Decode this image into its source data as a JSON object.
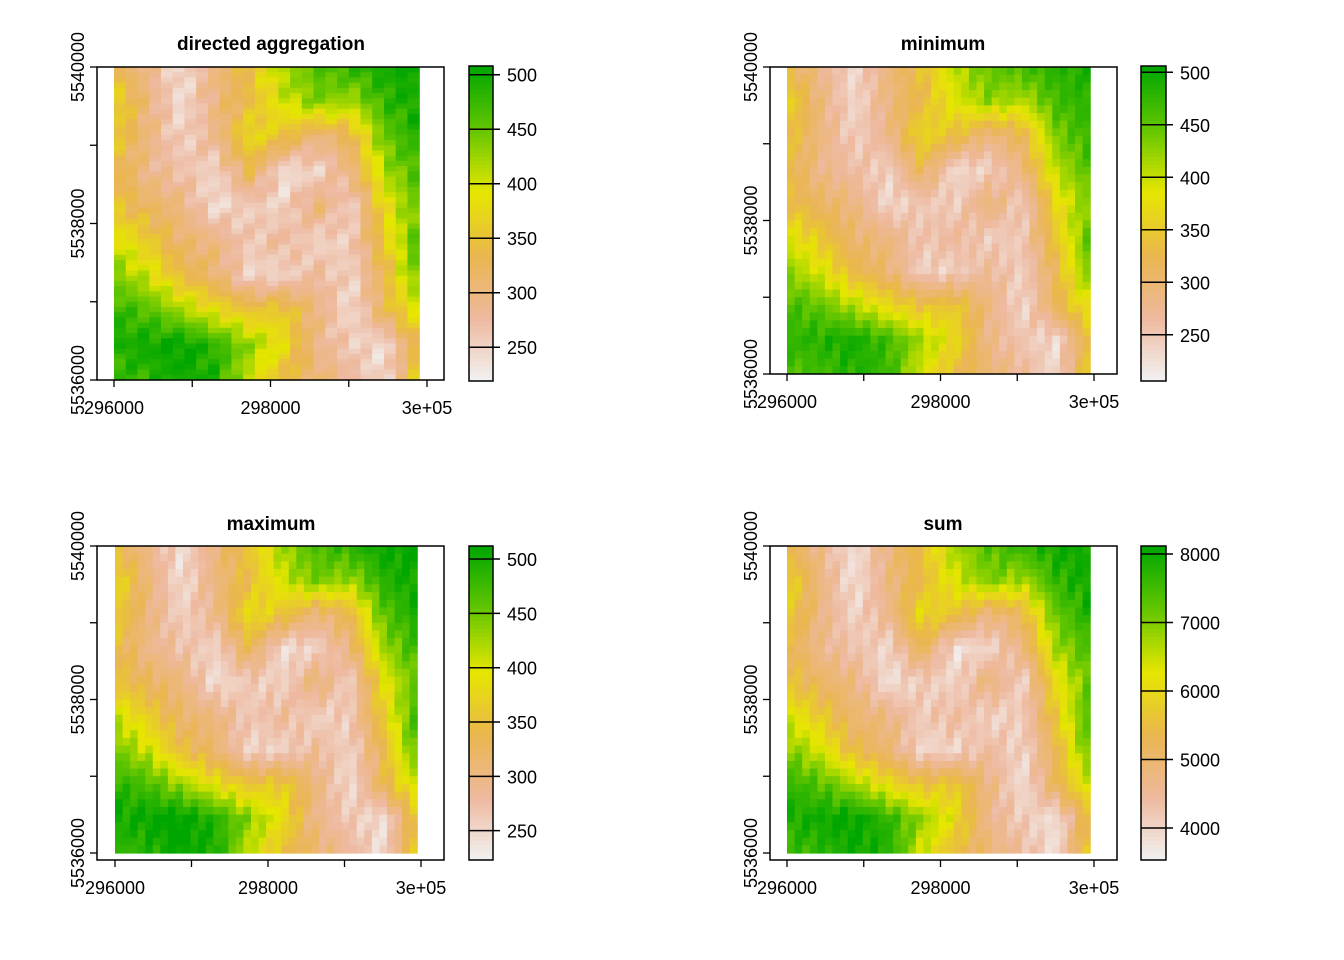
{
  "chart_data": [
    {
      "type": "heatmap",
      "title": "directed aggregation",
      "xlim": [
        296000,
        300000
      ],
      "ylim": [
        5536000,
        5540000
      ],
      "x_ticks": [
        "296000",
        "298000",
        "3e+05"
      ],
      "y_ticks": [
        "5536000",
        "5538000",
        "5540000"
      ],
      "legend_ticks": [
        "500",
        "450",
        "400",
        "350",
        "300",
        "250"
      ],
      "legend_range": [
        219,
        508
      ],
      "value_scale": 1,
      "raster_extent_x": [
        296000,
        299900
      ],
      "raster_cols": 26,
      "raster_rows": 60
    },
    {
      "type": "heatmap",
      "title": "minimum",
      "xlim": [
        296000,
        300000
      ],
      "ylim": [
        5536000,
        5540000
      ],
      "x_ticks": [
        "296000",
        "298000",
        "3e+05"
      ],
      "y_ticks": [
        "5536000",
        "5538000",
        "5540000"
      ],
      "legend_ticks": [
        "500",
        "450",
        "400",
        "350",
        "300",
        "250"
      ],
      "legend_range": [
        206,
        506
      ],
      "value_scale": 0.97,
      "raster_extent_x": [
        296000,
        299950
      ],
      "raster_cols": 40,
      "raster_rows": 40
    },
    {
      "type": "heatmap",
      "title": "maximum",
      "xlim": [
        296000,
        300000
      ],
      "ylim": [
        5536000,
        5540000
      ],
      "x_ticks": [
        "296000",
        "298000",
        "3e+05"
      ],
      "y_ticks": [
        "5536000",
        "5538000",
        "5540000"
      ],
      "legend_ticks": [
        "500",
        "450",
        "400",
        "350",
        "300",
        "250"
      ],
      "legend_range": [
        223,
        512
      ],
      "value_scale": 1.02,
      "raster_extent_x": [
        296000,
        299950
      ],
      "raster_cols": 40,
      "raster_rows": 40
    },
    {
      "type": "heatmap",
      "title": "sum",
      "xlim": [
        296000,
        300000
      ],
      "ylim": [
        5536000,
        5540000
      ],
      "x_ticks": [
        "296000",
        "298000",
        "3e+05"
      ],
      "y_ticks": [
        "5536000",
        "5538000",
        "5540000"
      ],
      "legend_ticks": [
        "8000",
        "7000",
        "6000",
        "5000",
        "4000"
      ],
      "legend_range": [
        3533,
        8117
      ],
      "value_scale": 16,
      "raster_extent_x": [
        296000,
        299950
      ],
      "raster_cols": 40,
      "raster_rows": 40
    }
  ],
  "elevation_grid_approx": [
    [
      330,
      290,
      240,
      300,
      350,
      420,
      460,
      480,
      500,
      500
    ],
    [
      380,
      300,
      240,
      300,
      340,
      400,
      440,
      420,
      480,
      500
    ],
    [
      360,
      300,
      250,
      290,
      380,
      350,
      300,
      330,
      450,
      490
    ],
    [
      340,
      290,
      270,
      250,
      330,
      240,
      250,
      300,
      420,
      470
    ],
    [
      350,
      320,
      300,
      240,
      260,
      250,
      310,
      250,
      380,
      450
    ],
    [
      400,
      360,
      310,
      300,
      260,
      280,
      250,
      260,
      360,
      470
    ],
    [
      440,
      400,
      340,
      310,
      250,
      250,
      280,
      250,
      330,
      460
    ],
    [
      480,
      460,
      420,
      380,
      350,
      360,
      300,
      240,
      330,
      400
    ],
    [
      490,
      500,
      510,
      480,
      430,
      380,
      290,
      260,
      240,
      350
    ],
    [
      470,
      480,
      500,
      490,
      400,
      340,
      310,
      280,
      240,
      380
    ]
  ],
  "palette": [
    "#F2F2F2",
    "#EEB99F",
    "#EAB64E",
    "#E6E600",
    "#63C600",
    "#00A600"
  ]
}
